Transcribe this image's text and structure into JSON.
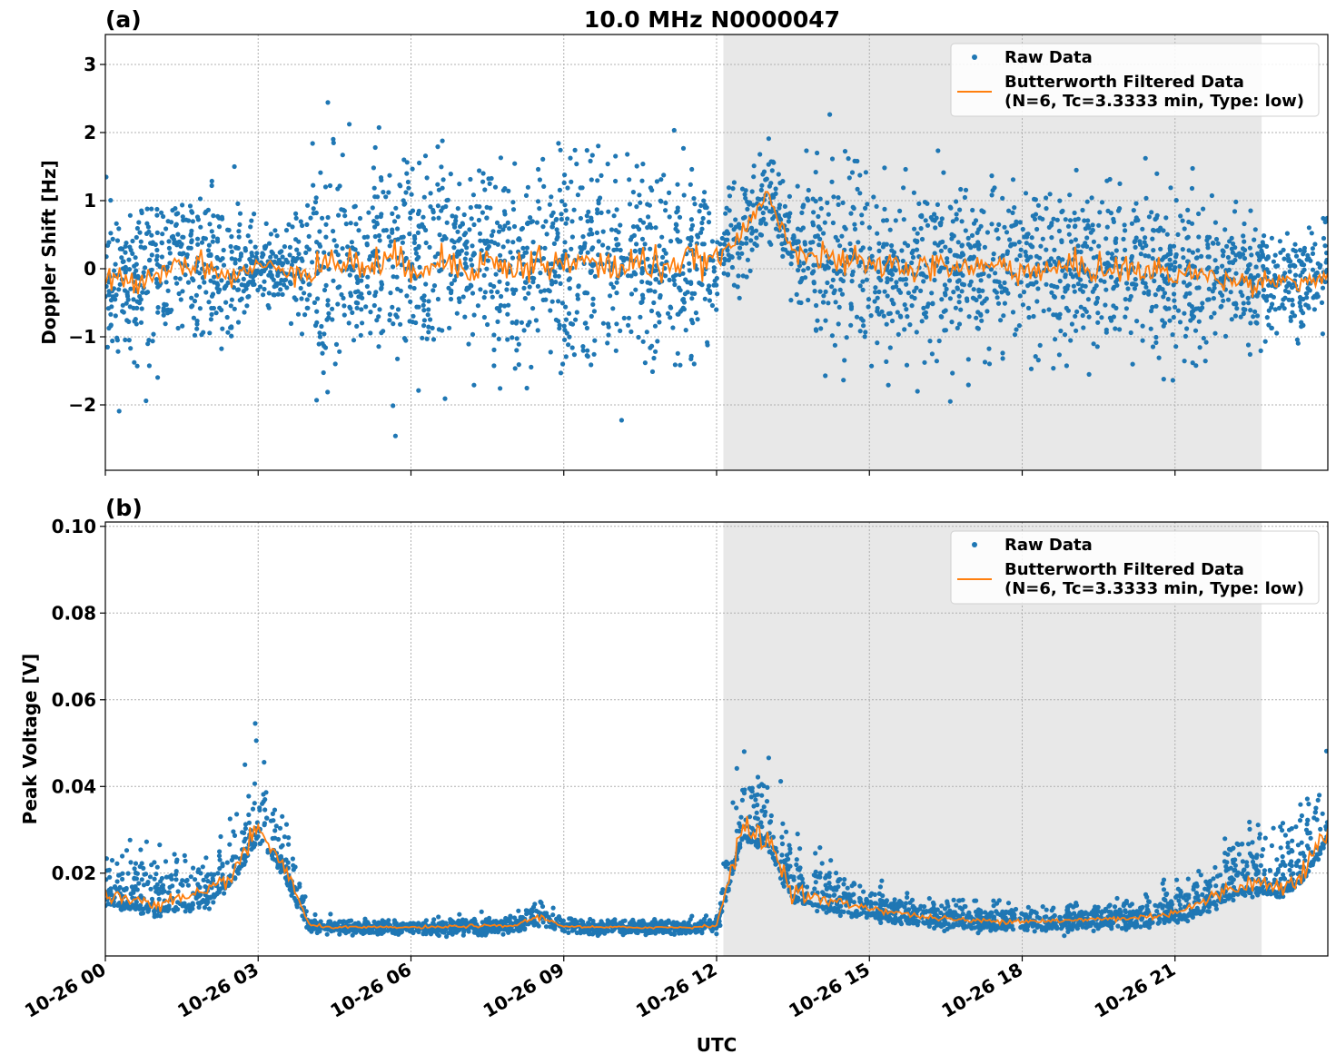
{
  "chart_data": [
    {
      "type": "scatter+line",
      "panel_label": "(a)",
      "title": "10.0 MHz N0000047",
      "xlabel": "",
      "ylabel": "Doppler Shift [Hz]",
      "xlim": [
        "10-26 00:00",
        "10-27 00:00"
      ],
      "ylim": [
        -2.96,
        3.44
      ],
      "yticks": [
        "3",
        "2",
        "1",
        "0",
        "−1",
        "−2"
      ],
      "ytick_values": [
        3,
        2,
        1,
        0,
        -1,
        -2
      ],
      "grid": true,
      "legend": "top-right",
      "legend_entries": [
        "Raw Data",
        "Butterworth Filtered Data",
        "(N=6, Tc=3.3333 min, Type: low)"
      ],
      "shaded_span": [
        "12:08",
        "22:42"
      ],
      "x": [
        "00:00",
        "00:30",
        "01:00",
        "01:30",
        "02:00",
        "02:30",
        "03:00",
        "03:30",
        "04:00",
        "04:30",
        "05:00",
        "05:30",
        "06:00",
        "06:30",
        "07:00",
        "07:30",
        "08:00",
        "08:30",
        "09:00",
        "09:30",
        "10:00",
        "10:30",
        "11:00",
        "11:30",
        "12:00",
        "12:30",
        "13:00",
        "13:30",
        "14:00",
        "14:30",
        "15:00",
        "15:30",
        "16:00",
        "16:30",
        "17:00",
        "17:30",
        "18:00",
        "18:30",
        "19:00",
        "19:30",
        "20:00",
        "20:30",
        "21:00",
        "21:30",
        "22:00",
        "22:30",
        "23:00",
        "23:30",
        "24:00"
      ],
      "series": [
        {
          "name": "Butterworth Filtered Data",
          "kind": "line",
          "color": "#ff7f0e",
          "values": [
            -0.15,
            -0.2,
            -0.05,
            0.1,
            0.05,
            -0.15,
            0.05,
            0.0,
            0.0,
            0.1,
            0.05,
            0.1,
            0.05,
            0.1,
            0.05,
            0.1,
            0.0,
            0.1,
            0.05,
            0.1,
            0.0,
            0.1,
            0.05,
            0.1,
            0.15,
            0.5,
            1.1,
            0.3,
            0.15,
            0.1,
            0.05,
            0.05,
            0.0,
            0.05,
            0.0,
            0.05,
            0.0,
            -0.05,
            0.05,
            0.0,
            0.0,
            -0.05,
            -0.05,
            -0.1,
            -0.15,
            -0.2,
            -0.15,
            -0.2,
            -0.1
          ]
        },
        {
          "name": "Raw Data",
          "kind": "scatter",
          "color": "#1f77b4",
          "spread": [
            0.55,
            0.55,
            0.55,
            0.55,
            0.55,
            0.55,
            0.3,
            0.3,
            0.75,
            0.75,
            0.75,
            0.75,
            0.75,
            0.75,
            0.75,
            0.75,
            0.75,
            0.75,
            0.75,
            0.75,
            0.75,
            0.75,
            0.75,
            0.75,
            0.35,
            0.35,
            0.35,
            0.35,
            0.6,
            0.6,
            0.6,
            0.6,
            0.6,
            0.6,
            0.6,
            0.6,
            0.6,
            0.6,
            0.6,
            0.6,
            0.6,
            0.6,
            0.6,
            0.6,
            0.4,
            0.4,
            0.4,
            0.4,
            0.4
          ]
        }
      ]
    },
    {
      "type": "scatter+line",
      "panel_label": "(b)",
      "title": "",
      "xlabel": "UTC",
      "ylabel": "Peak Voltage [V]",
      "xlim": [
        "10-26 00:00",
        "10-27 00:00"
      ],
      "ylim": [
        0.0009,
        0.101
      ],
      "yticks": [
        "0.10",
        "0.08",
        "0.06",
        "0.04",
        "0.02"
      ],
      "ytick_values": [
        0.1,
        0.08,
        0.06,
        0.04,
        0.02
      ],
      "xticks": [
        "10-26 00",
        "10-26 03",
        "10-26 06",
        "10-26 09",
        "10-26 12",
        "10-26 15",
        "10-26 18",
        "10-26 21"
      ],
      "grid": true,
      "legend": "top-right",
      "legend_entries": [
        "Raw Data",
        "Butterworth Filtered Data",
        "(N=6, Tc=3.3333 min, Type: low)"
      ],
      "shaded_span": [
        "12:08",
        "22:42"
      ],
      "x": [
        "00:00",
        "00:30",
        "01:00",
        "01:30",
        "02:00",
        "02:30",
        "03:00",
        "03:30",
        "04:00",
        "04:30",
        "05:00",
        "05:30",
        "06:00",
        "06:30",
        "07:00",
        "07:30",
        "08:00",
        "08:30",
        "09:00",
        "09:30",
        "10:00",
        "10:30",
        "11:00",
        "11:30",
        "12:00",
        "12:30",
        "13:00",
        "13:30",
        "14:00",
        "14:30",
        "15:00",
        "15:30",
        "16:00",
        "16:30",
        "17:00",
        "17:30",
        "18:00",
        "18:30",
        "19:00",
        "19:30",
        "20:00",
        "20:30",
        "21:00",
        "21:30",
        "22:00",
        "22:30",
        "23:00",
        "23:30",
        "24:00"
      ],
      "series": [
        {
          "name": "Butterworth Filtered Data",
          "kind": "line",
          "color": "#ff7f0e",
          "values": [
            0.015,
            0.014,
            0.013,
            0.014,
            0.015,
            0.02,
            0.03,
            0.022,
            0.008,
            0.0075,
            0.0075,
            0.0075,
            0.0075,
            0.0075,
            0.0078,
            0.0078,
            0.0078,
            0.01,
            0.0078,
            0.0075,
            0.0075,
            0.0075,
            0.0075,
            0.0075,
            0.008,
            0.03,
            0.028,
            0.016,
            0.014,
            0.013,
            0.012,
            0.011,
            0.01,
            0.0095,
            0.009,
            0.009,
            0.009,
            0.009,
            0.009,
            0.0095,
            0.0095,
            0.01,
            0.011,
            0.013,
            0.016,
            0.018,
            0.017,
            0.02,
            0.03
          ]
        },
        {
          "name": "Raw Data",
          "kind": "scatter",
          "color": "#1f77b4",
          "spread": [
            0.005,
            0.005,
            0.005,
            0.005,
            0.005,
            0.006,
            0.008,
            0.007,
            0.001,
            0.0008,
            0.0008,
            0.0008,
            0.0008,
            0.001,
            0.001,
            0.001,
            0.0008,
            0.002,
            0.0008,
            0.0008,
            0.0008,
            0.0008,
            0.0008,
            0.0008,
            0.001,
            0.009,
            0.008,
            0.006,
            0.004,
            0.003,
            0.0025,
            0.002,
            0.0018,
            0.0018,
            0.0018,
            0.0018,
            0.0018,
            0.0018,
            0.0018,
            0.0018,
            0.002,
            0.0025,
            0.003,
            0.004,
            0.005,
            0.006,
            0.006,
            0.007,
            0.01
          ]
        }
      ]
    }
  ]
}
